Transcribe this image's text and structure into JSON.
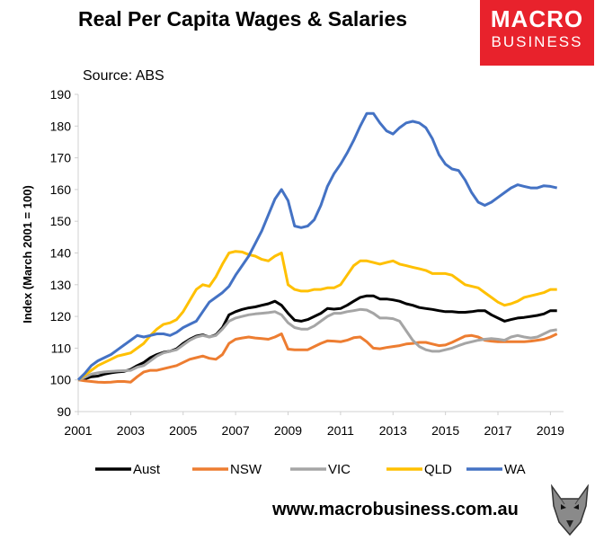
{
  "header": {
    "title": "Real Per Capita Wages & Salaries",
    "source": "Source: ABS"
  },
  "logo": {
    "line1": "MACRO",
    "line2": "BUSINESS",
    "color": "#e8222c"
  },
  "footer": {
    "url": "www.macrobusiness.com.au",
    "icon": "wolf-icon"
  },
  "chart_data": {
    "type": "line",
    "title": "Real Per Capita Wages & Salaries",
    "ylabel": "Index (March 2001 = 100)",
    "xlabel": "",
    "ylim": [
      90,
      190
    ],
    "xlim": [
      2001,
      2019.5
    ],
    "yticks": [
      90,
      100,
      110,
      120,
      130,
      140,
      150,
      160,
      170,
      180,
      190
    ],
    "xticks": [
      2001,
      2003,
      2005,
      2007,
      2009,
      2011,
      2013,
      2015,
      2017,
      2019
    ],
    "grid": false,
    "legend": "bottom",
    "x": [
      2001.0,
      2001.25,
      2001.5,
      2001.75,
      2002.0,
      2002.25,
      2002.5,
      2002.75,
      2003.0,
      2003.25,
      2003.5,
      2003.75,
      2004.0,
      2004.25,
      2004.5,
      2004.75,
      2005.0,
      2005.25,
      2005.5,
      2005.75,
      2006.0,
      2006.25,
      2006.5,
      2006.75,
      2007.0,
      2007.25,
      2007.5,
      2007.75,
      2008.0,
      2008.25,
      2008.5,
      2008.75,
      2009.0,
      2009.25,
      2009.5,
      2009.75,
      2010.0,
      2010.25,
      2010.5,
      2010.75,
      2011.0,
      2011.25,
      2011.5,
      2011.75,
      2012.0,
      2012.25,
      2012.5,
      2012.75,
      2013.0,
      2013.25,
      2013.5,
      2013.75,
      2014.0,
      2014.25,
      2014.5,
      2014.75,
      2015.0,
      2015.25,
      2015.5,
      2015.75,
      2016.0,
      2016.25,
      2016.5,
      2016.75,
      2017.0,
      2017.25,
      2017.5,
      2017.75,
      2018.0,
      2018.25,
      2018.5,
      2018.75,
      2019.0,
      2019.25
    ],
    "series": [
      {
        "name": "Aust",
        "color": "#000000",
        "values": [
          100,
          100.3,
          101,
          101.2,
          101.8,
          102.2,
          102.5,
          102.7,
          103.3,
          104.5,
          105.5,
          107,
          108,
          108.7,
          109,
          109.8,
          111.5,
          112.8,
          113.8,
          114.2,
          113.5,
          114.2,
          116.5,
          120.5,
          121.5,
          122.2,
          122.7,
          123,
          123.5,
          124,
          124.8,
          123.5,
          121,
          118.8,
          118.5,
          119,
          120,
          121,
          122.5,
          122.3,
          122.5,
          123.5,
          124.8,
          126,
          126.5,
          126.5,
          125.5,
          125.5,
          125.2,
          124.8,
          124,
          123.5,
          122.8,
          122.5,
          122.2,
          121.8,
          121.5,
          121.5,
          121.3,
          121.3,
          121.5,
          121.8,
          121.8,
          120.5,
          119.5,
          118.5,
          119,
          119.5,
          119.7,
          120,
          120.3,
          120.8,
          121.8,
          121.8
        ]
      },
      {
        "name": "NSW",
        "color": "#ed7d31",
        "values": [
          100,
          99.7,
          99.5,
          99.3,
          99.2,
          99.3,
          99.5,
          99.5,
          99.3,
          101,
          102.5,
          103,
          103,
          103.5,
          104,
          104.5,
          105.5,
          106.5,
          107,
          107.5,
          106.8,
          106.5,
          108,
          111.5,
          112.8,
          113.2,
          113.5,
          113.2,
          113,
          112.8,
          113.5,
          114.5,
          109.7,
          109.5,
          109.5,
          109.5,
          110.5,
          111.5,
          112.3,
          112.2,
          112,
          112.5,
          113.3,
          113.5,
          112,
          110,
          109.8,
          110.2,
          110.5,
          110.8,
          111.3,
          111.5,
          111.8,
          111.8,
          111.3,
          110.8,
          111,
          111.8,
          112.8,
          113.8,
          114,
          113.5,
          112.5,
          112.2,
          112,
          112,
          112,
          112,
          112,
          112.2,
          112.5,
          112.8,
          113.5,
          114.5
        ]
      },
      {
        "name": "VIC",
        "color": "#a5a5a5",
        "values": [
          100,
          100.8,
          101.8,
          102.2,
          102.5,
          102.7,
          102.8,
          102.9,
          103,
          104,
          104.5,
          106,
          107.5,
          108.5,
          109,
          109.5,
          111,
          112.5,
          113.5,
          114,
          113.5,
          114,
          116,
          118.5,
          119.5,
          120,
          120.5,
          120.8,
          121,
          121.2,
          121.5,
          120.5,
          118,
          116.5,
          116,
          116,
          117,
          118.5,
          120,
          121,
          121,
          121.5,
          121.8,
          122.2,
          122,
          121,
          119.5,
          119.5,
          119.3,
          118.5,
          115.5,
          112.5,
          110.5,
          109.5,
          109,
          109,
          109.5,
          110,
          110.8,
          111.5,
          112,
          112.5,
          112.8,
          113,
          112.8,
          112.5,
          113.5,
          114,
          113.5,
          113.2,
          113.5,
          114.5,
          115.5,
          115.8
        ]
      },
      {
        "name": "QLD",
        "color": "#ffc000",
        "values": [
          100,
          101.5,
          103,
          104.5,
          105.5,
          106.5,
          107.5,
          108,
          108.5,
          110,
          111.5,
          114,
          116,
          117.5,
          118,
          119,
          121.5,
          125,
          128.5,
          130,
          129.5,
          132.5,
          136.5,
          140,
          140.5,
          140.3,
          139.5,
          139,
          138,
          137.5,
          139,
          140,
          130,
          128.5,
          128,
          128,
          128.5,
          128.5,
          129,
          129,
          130,
          133,
          136,
          137.5,
          137.5,
          137,
          136.5,
          137,
          137.5,
          136.5,
          136,
          135.5,
          135,
          134.5,
          133.5,
          133.5,
          133.5,
          133,
          131.5,
          130,
          129.5,
          129,
          127.5,
          126,
          124.5,
          123.5,
          124,
          124.8,
          126,
          126.5,
          127,
          127.5,
          128.5,
          128.5
        ]
      },
      {
        "name": "WA",
        "color": "#4472c4",
        "values": [
          100,
          102,
          104.5,
          106,
          107,
          108,
          109.5,
          111,
          112.5,
          114,
          113.5,
          114,
          114.5,
          114.5,
          114,
          115,
          116.5,
          117.5,
          118.5,
          121.5,
          124.5,
          126,
          127.5,
          129.5,
          133,
          136,
          139,
          143,
          147,
          152,
          157,
          160,
          156.5,
          148.5,
          148,
          148.5,
          150.5,
          155,
          161,
          165,
          168,
          171.5,
          175.5,
          180,
          184,
          184,
          181,
          178.5,
          177.5,
          179.5,
          181,
          181.5,
          181,
          179.5,
          176,
          171,
          168,
          166.5,
          166,
          163,
          159,
          156,
          155,
          156,
          157.5,
          159,
          160.5,
          161.5,
          161,
          160.5,
          160.5,
          161.2,
          161,
          160.5
        ]
      }
    ]
  }
}
